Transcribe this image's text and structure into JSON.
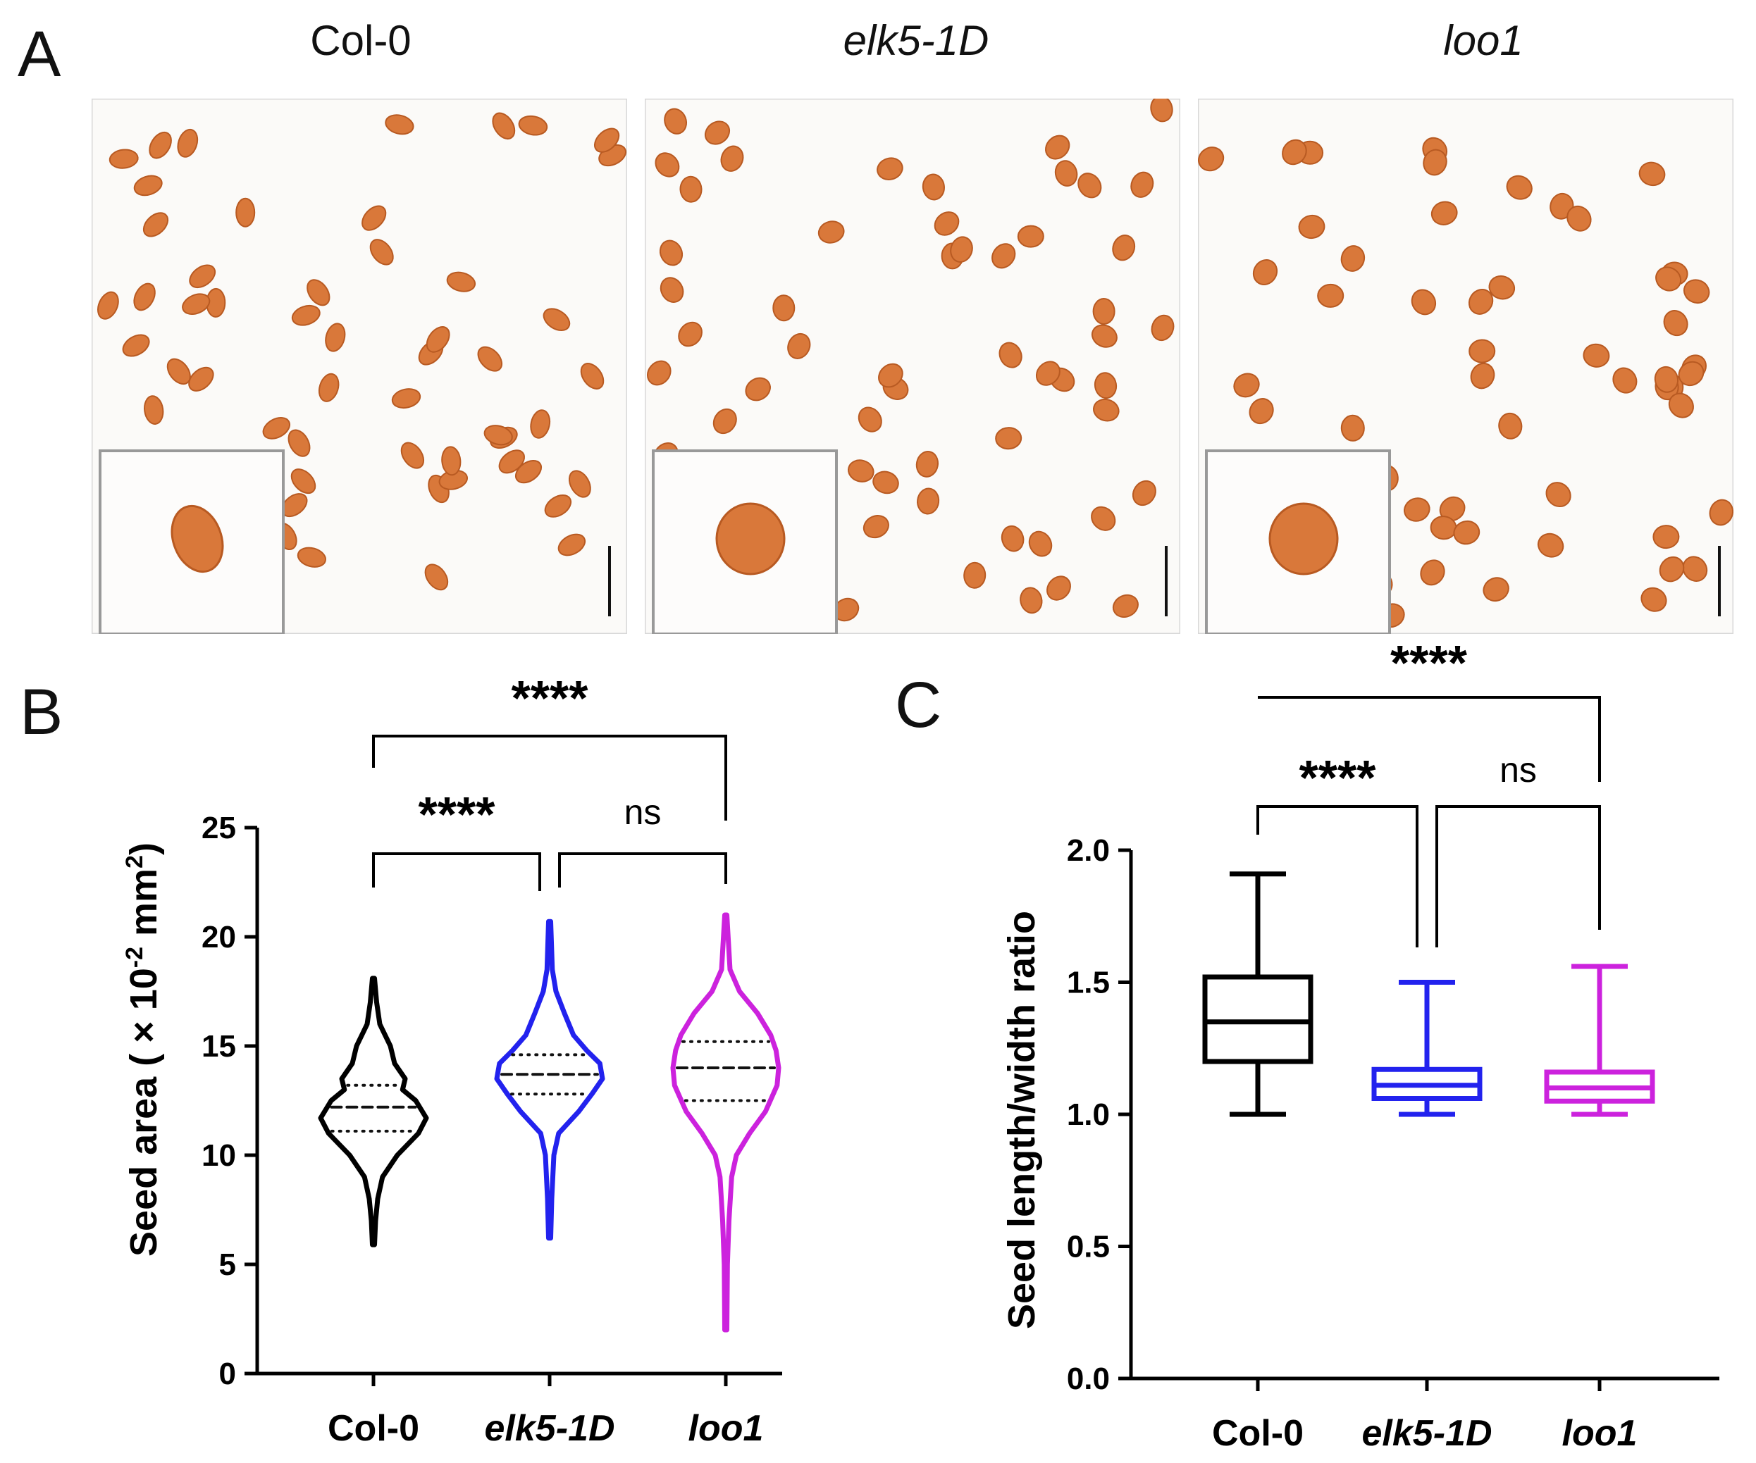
{
  "panels": {
    "A": {
      "label": "A",
      "titles": [
        "Col-0",
        "elk5-1D",
        "loo1"
      ]
    },
    "B": {
      "label": "B"
    },
    "C": {
      "label": "C"
    }
  },
  "colors": {
    "col0": "#000000",
    "elk5": "#2222ee",
    "loo1": "#cc22dd",
    "seed": "#d9783a",
    "seed_dark": "#b85a22",
    "inset_border": "#999999"
  },
  "chart_data": [
    {
      "id": "B",
      "type": "violin",
      "ylabel": "Seed area ( × 10⁻² mm²)",
      "ylabel_parts": {
        "pre": "Seed area ( × 10",
        "sup1": "-2",
        "mid": " mm",
        "sup2": "2",
        "post": ")"
      },
      "ylim": [
        0,
        25
      ],
      "yticks": [
        0,
        5,
        10,
        15,
        20,
        25
      ],
      "ytick_labels": [
        "0",
        "5",
        "10",
        "15",
        "20",
        "25"
      ],
      "categories": [
        "Col-0",
        "elk5-1D",
        "loo1"
      ],
      "category_italic": [
        false,
        true,
        true
      ],
      "series": [
        {
          "name": "Col-0",
          "color": "#000000",
          "min": 5.9,
          "max": 18.1,
          "q1": 11.1,
          "median": 12.2,
          "q3": 13.2,
          "profile": [
            [
              5.9,
              0.02
            ],
            [
              7,
              0.04
            ],
            [
              8,
              0.08
            ],
            [
              9,
              0.17
            ],
            [
              10,
              0.45
            ],
            [
              11,
              0.85
            ],
            [
              11.7,
              1.0
            ],
            [
              12.5,
              0.8
            ],
            [
              13,
              0.55
            ],
            [
              13.5,
              0.6
            ],
            [
              14.2,
              0.4
            ],
            [
              15,
              0.32
            ],
            [
              16,
              0.12
            ],
            [
              17,
              0.06
            ],
            [
              18.1,
              0.02
            ]
          ]
        },
        {
          "name": "elk5-1D",
          "color": "#2222ee",
          "min": 6.2,
          "max": 20.7,
          "q1": 12.8,
          "median": 13.7,
          "q3": 14.6,
          "profile": [
            [
              6.2,
              0.02
            ],
            [
              8,
              0.04
            ],
            [
              10,
              0.08
            ],
            [
              11,
              0.17
            ],
            [
              12,
              0.55
            ],
            [
              12.8,
              0.8
            ],
            [
              13.5,
              1.0
            ],
            [
              14.2,
              0.95
            ],
            [
              14.8,
              0.7
            ],
            [
              15.5,
              0.45
            ],
            [
              16.5,
              0.28
            ],
            [
              17.5,
              0.12
            ],
            [
              18.5,
              0.05
            ],
            [
              20.7,
              0.02
            ]
          ]
        },
        {
          "name": "loo1",
          "color": "#cc22dd",
          "min": 2.0,
          "max": 21.0,
          "q1": 12.5,
          "median": 14.0,
          "q3": 15.2,
          "profile": [
            [
              2.0,
              0.02
            ],
            [
              5,
              0.03
            ],
            [
              7,
              0.06
            ],
            [
              9,
              0.11
            ],
            [
              10,
              0.2
            ],
            [
              11,
              0.45
            ],
            [
              12,
              0.75
            ],
            [
              13.2,
              0.97
            ],
            [
              14,
              1.0
            ],
            [
              14.8,
              0.95
            ],
            [
              15.5,
              0.85
            ],
            [
              16.5,
              0.6
            ],
            [
              17.5,
              0.26
            ],
            [
              18.5,
              0.08
            ],
            [
              21.0,
              0.02
            ]
          ]
        }
      ],
      "comparisons": [
        {
          "from": 0,
          "to": 2,
          "label": "****"
        },
        {
          "from": 0,
          "to": 1,
          "label": "****"
        },
        {
          "from": 1,
          "to": 2,
          "label": "ns"
        }
      ]
    },
    {
      "id": "C",
      "type": "box",
      "ylabel": "Seed length/width ratio",
      "ylim": [
        0,
        2.0
      ],
      "yticks": [
        0,
        0.5,
        1.0,
        1.5,
        2.0
      ],
      "ytick_labels": [
        "0.0",
        "0.5",
        "1.0",
        "1.5",
        "2.0"
      ],
      "categories": [
        "Col-0",
        "elk5-1D",
        "loo1"
      ],
      "category_italic": [
        false,
        true,
        true
      ],
      "series": [
        {
          "name": "Col-0",
          "color": "#000000",
          "min": 1.0,
          "q1": 1.2,
          "median": 1.35,
          "q3": 1.52,
          "max": 1.91
        },
        {
          "name": "elk5-1D",
          "color": "#2222ee",
          "min": 1.0,
          "q1": 1.06,
          "median": 1.11,
          "q3": 1.17,
          "max": 1.5
        },
        {
          "name": "loo1",
          "color": "#cc22dd",
          "min": 1.0,
          "q1": 1.05,
          "median": 1.1,
          "q3": 1.16,
          "max": 1.56
        }
      ],
      "comparisons": [
        {
          "from": 0,
          "to": 2,
          "label": "****"
        },
        {
          "from": 0,
          "to": 1,
          "label": "****"
        },
        {
          "from": 1,
          "to": 2,
          "label": "ns"
        }
      ]
    }
  ]
}
